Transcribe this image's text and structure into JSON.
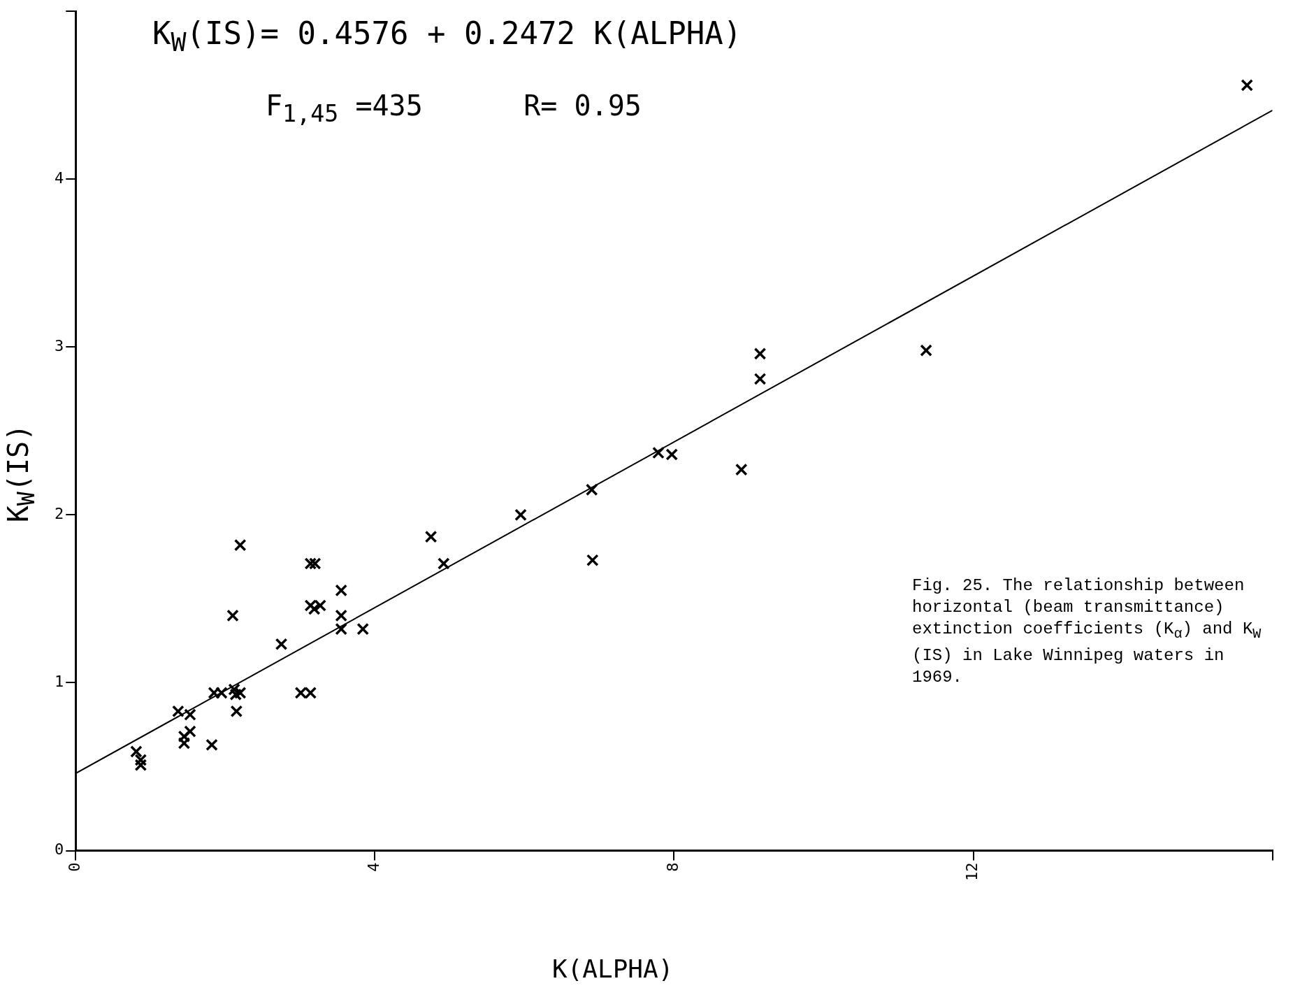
{
  "chart_data": {
    "type": "scatter",
    "title": "K$_{W}$(IS)= 0.4576 + 0.2472 K(ALPHA)",
    "xlabel": "K(ALPHA)",
    "ylabel": "K$_{W}$(IS)",
    "annotations": [
      "F$_{1,45}$ =435      R= 0.95",
      "Fig. 25.  The relationship between horizontal (beam transmittance) extinction coefficients (K$_{α}$) and K$_{W}$ (IS) in Lake Winnipeg waters in 1969."
    ],
    "xlim": [
      0,
      16
    ],
    "ylim": [
      0,
      5
    ],
    "xticks": [
      0,
      4,
      8,
      12,
      {
        "value": 16,
        "label": null
      }
    ],
    "yticks": [
      0,
      1,
      2,
      3,
      4,
      {
        "value": 5,
        "label": null
      }
    ],
    "grid": false,
    "legend": false,
    "marker": "cross",
    "series": [
      {
        "type": "scatter",
        "color": "#000000",
        "x": [
          0.81,
          0.87,
          0.87,
          1.37,
          1.45,
          1.45,
          1.53,
          1.53,
          1.82,
          1.85,
          1.95,
          2.1,
          2.12,
          2.14,
          2.2,
          2.15,
          2.2,
          2.75,
          3.01,
          3.14,
          3.14,
          3.2,
          3.14,
          3.19,
          3.27,
          3.55,
          3.55,
          3.55,
          3.84,
          4.75,
          4.92,
          5.95,
          6.9,
          6.91,
          7.79,
          7.97,
          8.9,
          9.15,
          9.15,
          11.37,
          15.66
        ],
        "values": [
          0.59,
          0.54,
          0.51,
          0.83,
          0.68,
          0.64,
          0.71,
          0.81,
          0.63,
          0.94,
          0.94,
          1.4,
          0.96,
          0.93,
          0.94,
          0.83,
          1.82,
          1.23,
          0.94,
          0.94,
          1.71,
          1.71,
          1.46,
          1.44,
          1.46,
          1.55,
          1.4,
          1.32,
          1.32,
          1.87,
          1.71,
          2.0,
          2.15,
          1.73,
          2.37,
          2.36,
          2.27,
          2.81,
          2.96,
          2.98,
          4.56
        ]
      },
      {
        "type": "line",
        "color": "#000000",
        "marker": "none",
        "x": [
          0,
          16
        ],
        "values": [
          0.46,
          4.41
        ]
      }
    ]
  }
}
